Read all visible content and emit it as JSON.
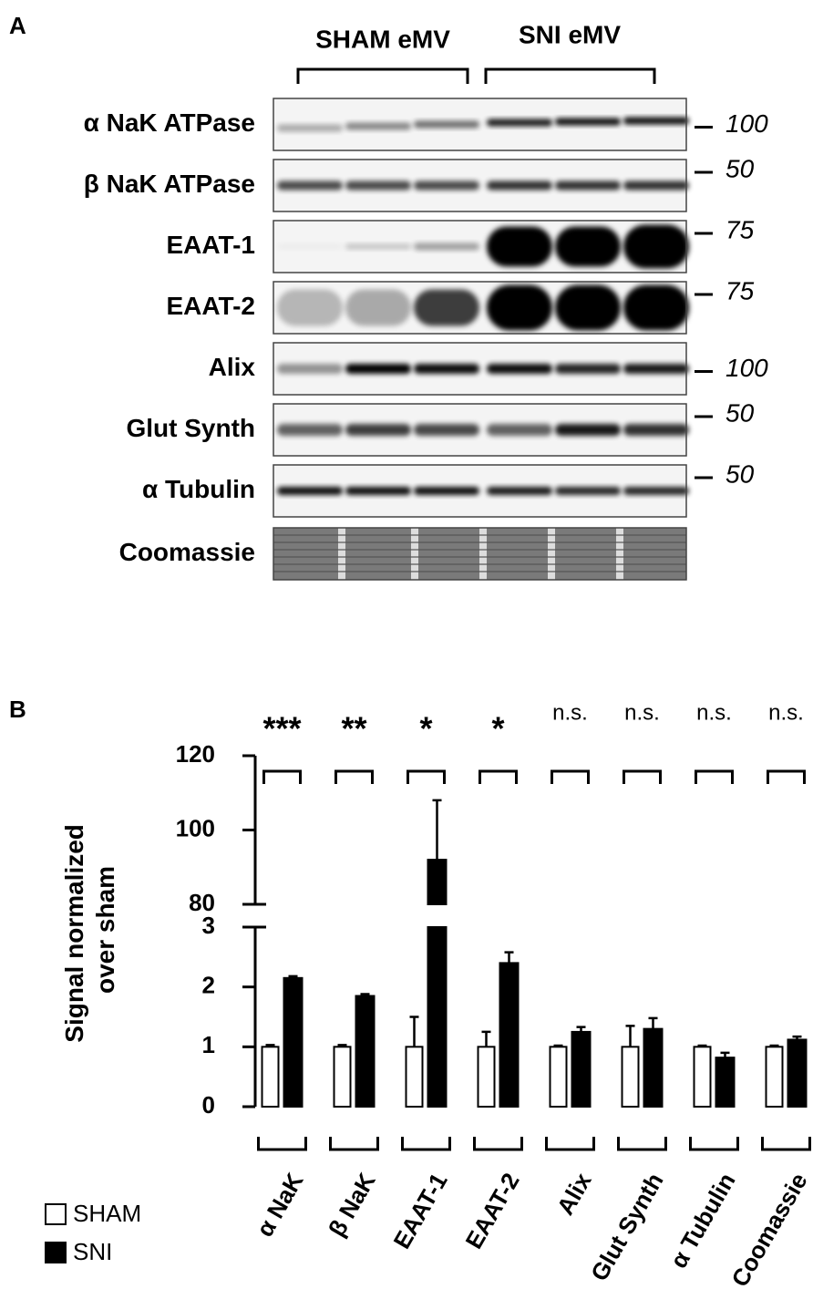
{
  "panel_a": {
    "label": "A",
    "groups": [
      "SHAM eMV",
      "SNI eMV"
    ],
    "rows": [
      {
        "label": "α NaK ATPase",
        "mw": 100
      },
      {
        "label": "β NaK ATPase",
        "mw": 50
      },
      {
        "label": "EAAT-1",
        "mw": 75
      },
      {
        "label": "EAAT-2",
        "mw": 75
      },
      {
        "label": "Alix",
        "mw": 100
      },
      {
        "label": "Glut Synth",
        "mw": 50
      },
      {
        "label": "α Tubulin",
        "mw": 50
      },
      {
        "label": "Coomassie",
        "mw": null
      }
    ]
  },
  "chart_data": {
    "type": "bar",
    "panel_label": "B",
    "ylabel": [
      "Signal normalized",
      "over sham"
    ],
    "categories": [
      "α NaK",
      "β NaK",
      "EAAT-1",
      "EAAT-2",
      "Alix",
      "Glut Synth",
      "α Tubulin",
      "Coomassie"
    ],
    "significance": [
      "***",
      "**",
      "*",
      "*",
      "n.s.",
      "n.s.",
      "n.s.",
      "n.s."
    ],
    "series": [
      {
        "name": "SHAM",
        "color": "#ffffff",
        "values": [
          1,
          1,
          1,
          1,
          1,
          1,
          1,
          1
        ],
        "errors": [
          0.03,
          0.03,
          0.5,
          0.25,
          0.02,
          0.35,
          0.02,
          0.02
        ]
      },
      {
        "name": "SNI",
        "color": "#000000",
        "values": [
          2.15,
          1.85,
          92,
          2.4,
          1.25,
          1.3,
          0.82,
          1.12
        ],
        "errors": [
          0.03,
          0.03,
          16,
          0.18,
          0.08,
          0.18,
          0.08,
          0.05
        ]
      }
    ],
    "ylim": [
      0,
      3
    ],
    "yticks": [
      0,
      1,
      2,
      3
    ],
    "upper_ylim": [
      80,
      120
    ],
    "upper_yticks": [
      80,
      100,
      120
    ],
    "axis_break": true,
    "legend": "bottom-left"
  }
}
